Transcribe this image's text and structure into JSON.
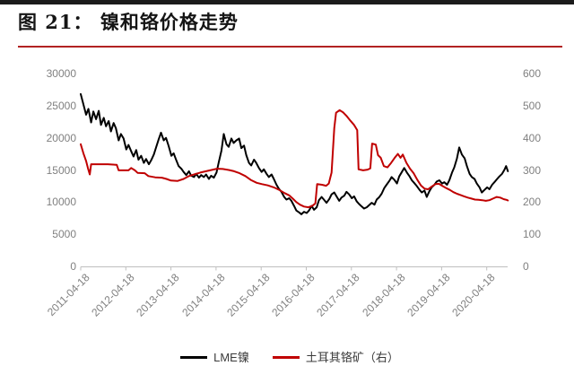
{
  "page": {
    "figure_title": "图 21： 镍和铬价格走势"
  },
  "chart_data": {
    "type": "line",
    "title": "图 21： 镍和铬价格走势",
    "grid": false,
    "legend_position": "bottom",
    "x_ticks": [
      "2011-04-18",
      "2012-04-18",
      "2013-04-18",
      "2014-04-18",
      "2015-04-18",
      "2016-04-18",
      "2017-04-18",
      "2018-04-18",
      "2019-04-18",
      "2020-04-18"
    ],
    "x_tick_years": [
      2011.3,
      2012.3,
      2013.3,
      2014.3,
      2015.3,
      2016.3,
      2017.3,
      2018.3,
      2019.3,
      2020.3
    ],
    "left_axis": {
      "min": 0,
      "max": 30000,
      "ticks": [
        30000,
        25000,
        20000,
        15000,
        10000,
        5000,
        0
      ]
    },
    "right_axis": {
      "min": 0,
      "max": 600,
      "ticks": [
        600,
        500,
        400,
        300,
        200,
        100,
        0
      ]
    },
    "legend": {
      "items": [
        {
          "label": "LME镍",
          "color": "#000000"
        },
        {
          "label": "土耳其铬矿（右）",
          "color": "#c00000"
        }
      ]
    },
    "colors": {
      "axis_line": "#bfbfbf",
      "tick_text": "#808080",
      "title_rule": "#b22222",
      "top_bar": "#1b1b1b"
    },
    "series": [
      {
        "name": "LME镍",
        "axis": "left",
        "color": "#000000",
        "width": 2,
        "points": [
          [
            2011.3,
            26800
          ],
          [
            2011.36,
            25200
          ],
          [
            2011.42,
            23600
          ],
          [
            2011.47,
            24500
          ],
          [
            2011.53,
            22400
          ],
          [
            2011.58,
            24100
          ],
          [
            2011.64,
            22900
          ],
          [
            2011.7,
            24200
          ],
          [
            2011.75,
            22000
          ],
          [
            2011.81,
            23100
          ],
          [
            2011.86,
            21800
          ],
          [
            2011.92,
            22600
          ],
          [
            2011.97,
            21000
          ],
          [
            2012.03,
            22300
          ],
          [
            2012.08,
            21500
          ],
          [
            2012.14,
            19600
          ],
          [
            2012.19,
            20600
          ],
          [
            2012.25,
            19900
          ],
          [
            2012.31,
            18200
          ],
          [
            2012.36,
            18900
          ],
          [
            2012.42,
            17900
          ],
          [
            2012.47,
            17100
          ],
          [
            2012.53,
            18100
          ],
          [
            2012.58,
            16600
          ],
          [
            2012.64,
            17200
          ],
          [
            2012.7,
            16100
          ],
          [
            2012.75,
            16700
          ],
          [
            2012.81,
            15900
          ],
          [
            2012.86,
            16500
          ],
          [
            2012.92,
            17400
          ],
          [
            2012.97,
            18500
          ],
          [
            2013.03,
            19800
          ],
          [
            2013.08,
            20800
          ],
          [
            2013.14,
            19600
          ],
          [
            2013.19,
            20000
          ],
          [
            2013.25,
            18700
          ],
          [
            2013.31,
            17200
          ],
          [
            2013.36,
            17600
          ],
          [
            2013.42,
            16500
          ],
          [
            2013.47,
            15600
          ],
          [
            2013.53,
            15200
          ],
          [
            2013.58,
            14700
          ],
          [
            2013.64,
            14200
          ],
          [
            2013.7,
            14800
          ],
          [
            2013.75,
            14100
          ],
          [
            2013.81,
            13900
          ],
          [
            2013.86,
            14400
          ],
          [
            2013.92,
            13800
          ],
          [
            2013.97,
            14200
          ],
          [
            2014.03,
            13900
          ],
          [
            2014.08,
            14300
          ],
          [
            2014.14,
            13600
          ],
          [
            2014.19,
            14100
          ],
          [
            2014.25,
            13800
          ],
          [
            2014.31,
            14600
          ],
          [
            2014.36,
            16200
          ],
          [
            2014.42,
            18000
          ],
          [
            2014.47,
            20600
          ],
          [
            2014.53,
            19000
          ],
          [
            2014.58,
            18600
          ],
          [
            2014.64,
            19900
          ],
          [
            2014.69,
            19200
          ],
          [
            2014.75,
            19600
          ],
          [
            2014.81,
            19900
          ],
          [
            2014.86,
            18400
          ],
          [
            2014.92,
            18800
          ],
          [
            2014.97,
            17300
          ],
          [
            2015.03,
            16100
          ],
          [
            2015.08,
            15700
          ],
          [
            2015.14,
            16600
          ],
          [
            2015.19,
            16100
          ],
          [
            2015.25,
            15300
          ],
          [
            2015.31,
            14700
          ],
          [
            2015.36,
            15100
          ],
          [
            2015.42,
            14400
          ],
          [
            2015.47,
            13900
          ],
          [
            2015.53,
            14300
          ],
          [
            2015.58,
            13600
          ],
          [
            2015.64,
            12700
          ],
          [
            2015.69,
            12100
          ],
          [
            2015.75,
            11600
          ],
          [
            2015.81,
            10800
          ],
          [
            2015.86,
            10400
          ],
          [
            2015.92,
            10600
          ],
          [
            2015.97,
            10200
          ],
          [
            2016.03,
            9400
          ],
          [
            2016.08,
            8700
          ],
          [
            2016.14,
            8400
          ],
          [
            2016.19,
            8100
          ],
          [
            2016.25,
            8500
          ],
          [
            2016.31,
            8300
          ],
          [
            2016.36,
            8700
          ],
          [
            2016.42,
            9400
          ],
          [
            2016.47,
            8800
          ],
          [
            2016.53,
            9200
          ],
          [
            2016.58,
            10300
          ],
          [
            2016.64,
            10800
          ],
          [
            2016.69,
            10400
          ],
          [
            2016.75,
            9900
          ],
          [
            2016.81,
            10500
          ],
          [
            2016.86,
            11200
          ],
          [
            2016.92,
            11500
          ],
          [
            2016.97,
            10900
          ],
          [
            2017.03,
            10200
          ],
          [
            2017.08,
            10700
          ],
          [
            2017.14,
            11000
          ],
          [
            2017.19,
            11600
          ],
          [
            2017.25,
            11200
          ],
          [
            2017.31,
            10600
          ],
          [
            2017.36,
            10900
          ],
          [
            2017.42,
            10100
          ],
          [
            2017.47,
            9700
          ],
          [
            2017.53,
            9300
          ],
          [
            2017.58,
            9000
          ],
          [
            2017.64,
            9200
          ],
          [
            2017.69,
            9500
          ],
          [
            2017.75,
            9900
          ],
          [
            2017.81,
            9600
          ],
          [
            2017.86,
            10400
          ],
          [
            2017.92,
            10800
          ],
          [
            2017.97,
            11300
          ],
          [
            2018.03,
            12200
          ],
          [
            2018.08,
            12700
          ],
          [
            2018.14,
            13300
          ],
          [
            2018.19,
            13900
          ],
          [
            2018.25,
            13500
          ],
          [
            2018.31,
            12900
          ],
          [
            2018.36,
            14000
          ],
          [
            2018.42,
            14700
          ],
          [
            2018.47,
            15300
          ],
          [
            2018.53,
            14600
          ],
          [
            2018.58,
            14100
          ],
          [
            2018.64,
            13400
          ],
          [
            2018.69,
            13000
          ],
          [
            2018.75,
            12500
          ],
          [
            2018.81,
            11900
          ],
          [
            2018.86,
            11500
          ],
          [
            2018.92,
            11800
          ],
          [
            2018.97,
            10800
          ],
          [
            2019.03,
            11700
          ],
          [
            2019.08,
            12300
          ],
          [
            2019.14,
            12700
          ],
          [
            2019.19,
            13200
          ],
          [
            2019.25,
            13400
          ],
          [
            2019.31,
            12900
          ],
          [
            2019.36,
            13100
          ],
          [
            2019.42,
            12700
          ],
          [
            2019.47,
            13400
          ],
          [
            2019.53,
            14600
          ],
          [
            2019.58,
            15400
          ],
          [
            2019.64,
            16800
          ],
          [
            2019.69,
            18500
          ],
          [
            2019.75,
            17400
          ],
          [
            2019.81,
            16800
          ],
          [
            2019.86,
            15600
          ],
          [
            2019.92,
            14400
          ],
          [
            2019.97,
            13900
          ],
          [
            2020.03,
            13600
          ],
          [
            2020.08,
            12900
          ],
          [
            2020.14,
            12300
          ],
          [
            2020.19,
            11500
          ],
          [
            2020.25,
            11900
          ],
          [
            2020.31,
            12300
          ],
          [
            2020.36,
            12000
          ],
          [
            2020.42,
            12700
          ],
          [
            2020.47,
            13100
          ],
          [
            2020.53,
            13600
          ],
          [
            2020.58,
            14000
          ],
          [
            2020.64,
            14400
          ],
          [
            2020.69,
            15000
          ],
          [
            2020.73,
            15600
          ],
          [
            2020.77,
            14800
          ]
        ]
      },
      {
        "name": "土耳其铬矿（右）",
        "axis": "right",
        "color": "#c00000",
        "width": 2,
        "points": [
          [
            2011.3,
            380
          ],
          [
            2011.36,
            352
          ],
          [
            2011.42,
            328
          ],
          [
            2011.46,
            306
          ],
          [
            2011.5,
            286
          ],
          [
            2011.53,
            318
          ],
          [
            2011.7,
            318
          ],
          [
            2011.9,
            318
          ],
          [
            2012.1,
            316
          ],
          [
            2012.14,
            299
          ],
          [
            2012.36,
            299
          ],
          [
            2012.42,
            306
          ],
          [
            2012.5,
            299
          ],
          [
            2012.56,
            291
          ],
          [
            2012.72,
            290
          ],
          [
            2012.8,
            281
          ],
          [
            2012.95,
            277
          ],
          [
            2013.1,
            276
          ],
          [
            2013.2,
            272
          ],
          [
            2013.3,
            267
          ],
          [
            2013.45,
            266
          ],
          [
            2013.58,
            272
          ],
          [
            2013.7,
            281
          ],
          [
            2013.83,
            287
          ],
          [
            2013.95,
            292
          ],
          [
            2014.08,
            296
          ],
          [
            2014.2,
            300
          ],
          [
            2014.32,
            304
          ],
          [
            2014.45,
            303
          ],
          [
            2014.58,
            300
          ],
          [
            2014.7,
            296
          ],
          [
            2014.82,
            290
          ],
          [
            2014.95,
            281
          ],
          [
            2015.07,
            269
          ],
          [
            2015.2,
            260
          ],
          [
            2015.32,
            256
          ],
          [
            2015.45,
            252
          ],
          [
            2015.58,
            246
          ],
          [
            2015.7,
            238
          ],
          [
            2015.82,
            228
          ],
          [
            2015.92,
            221
          ],
          [
            2016.0,
            211
          ],
          [
            2016.08,
            200
          ],
          [
            2016.16,
            192
          ],
          [
            2016.25,
            186
          ],
          [
            2016.35,
            184
          ],
          [
            2016.44,
            189
          ],
          [
            2016.5,
            196
          ],
          [
            2016.54,
            256
          ],
          [
            2016.65,
            254
          ],
          [
            2016.74,
            251
          ],
          [
            2016.8,
            258
          ],
          [
            2016.86,
            292
          ],
          [
            2016.92,
            430
          ],
          [
            2016.96,
            478
          ],
          [
            2017.04,
            486
          ],
          [
            2017.12,
            479
          ],
          [
            2017.2,
            467
          ],
          [
            2017.28,
            453
          ],
          [
            2017.36,
            440
          ],
          [
            2017.43,
            424
          ],
          [
            2017.46,
            302
          ],
          [
            2017.56,
            299
          ],
          [
            2017.66,
            301
          ],
          [
            2017.72,
            305
          ],
          [
            2017.76,
            382
          ],
          [
            2017.84,
            379
          ],
          [
            2017.89,
            346
          ],
          [
            2017.95,
            338
          ],
          [
            2018.02,
            312
          ],
          [
            2018.1,
            308
          ],
          [
            2018.18,
            322
          ],
          [
            2018.26,
            338
          ],
          [
            2018.33,
            350
          ],
          [
            2018.39,
            338
          ],
          [
            2018.44,
            348
          ],
          [
            2018.52,
            322
          ],
          [
            2018.6,
            304
          ],
          [
            2018.68,
            290
          ],
          [
            2018.76,
            270
          ],
          [
            2018.84,
            252
          ],
          [
            2018.92,
            242
          ],
          [
            2019.0,
            240
          ],
          [
            2019.08,
            248
          ],
          [
            2019.16,
            256
          ],
          [
            2019.24,
            257
          ],
          [
            2019.32,
            250
          ],
          [
            2019.4,
            244
          ],
          [
            2019.48,
            238
          ],
          [
            2019.56,
            231
          ],
          [
            2019.64,
            226
          ],
          [
            2019.72,
            222
          ],
          [
            2019.8,
            218
          ],
          [
            2019.88,
            214
          ],
          [
            2019.96,
            211
          ],
          [
            2020.04,
            208
          ],
          [
            2020.12,
            207
          ],
          [
            2020.2,
            206
          ],
          [
            2020.28,
            204
          ],
          [
            2020.36,
            206
          ],
          [
            2020.44,
            211
          ],
          [
            2020.52,
            216
          ],
          [
            2020.6,
            214
          ],
          [
            2020.68,
            209
          ],
          [
            2020.74,
            207
          ],
          [
            2020.77,
            205
          ]
        ]
      }
    ]
  }
}
